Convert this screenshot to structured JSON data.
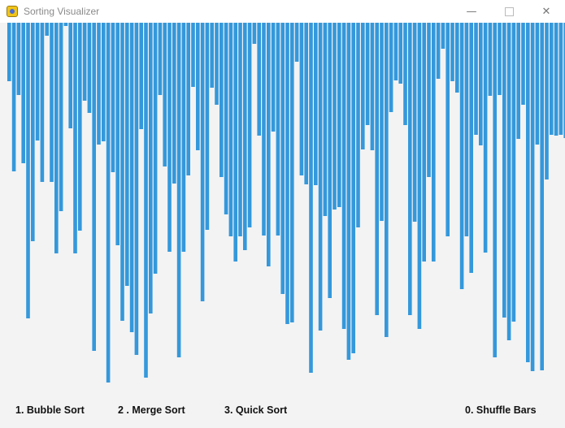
{
  "window": {
    "title": "Sorting Visualizer",
    "app_icon": "pygame-snake-icon",
    "minimize_glyph": "—",
    "close_glyph": "✕"
  },
  "bars": {
    "color": "#3498db",
    "values": [
      72,
      183,
      89,
      173,
      364,
      269,
      145,
      196,
      16,
      196,
      284,
      232,
      4,
      130,
      284,
      256,
      96,
      111,
      404,
      150,
      146,
      443,
      184,
      274,
      367,
      324,
      381,
      409,
      131,
      437,
      358,
      309,
      89,
      177,
      282,
      198,
      412,
      282,
      188,
      79,
      157,
      343,
      255,
      80,
      101,
      190,
      236,
      263,
      294,
      263,
      280,
      252,
      26,
      139,
      262,
      300,
      134,
      262,
      334,
      371,
      369,
      48,
      188,
      199,
      431,
      200,
      379,
      238,
      339,
      230,
      227,
      377,
      415,
      407,
      252,
      156,
      126,
      157,
      360,
      244,
      387,
      110,
      71,
      75,
      126,
      360,
      245,
      377,
      294,
      190,
      294,
      69,
      32,
      263,
      72,
      86,
      328,
      263,
      308,
      138,
      151,
      283,
      90,
      412,
      89,
      363,
      391,
      368,
      143,
      101,
      418,
      429,
      150,
      428,
      193,
      138,
      139,
      138,
      142,
      297,
      64
    ],
    "max_value": 450
  },
  "menu": {
    "bubble": "1. Bubble Sort",
    "merge": "2 . Merge Sort",
    "quick": "3. Quick Sort",
    "shuffle": "0. Shuffle Bars"
  }
}
